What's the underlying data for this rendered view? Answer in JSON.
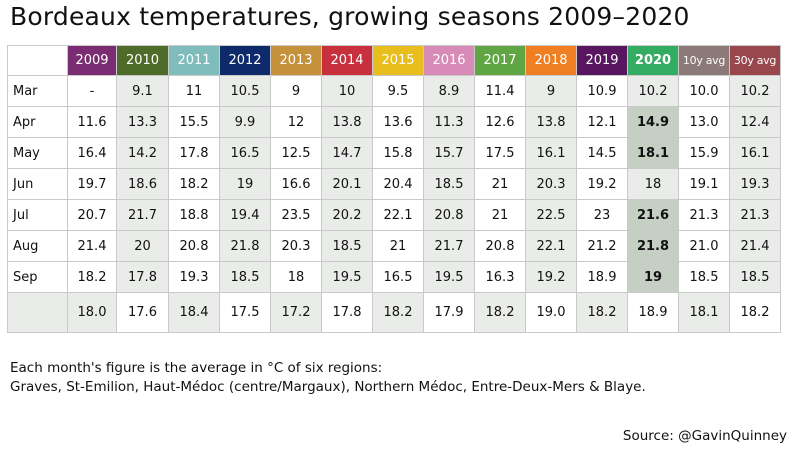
{
  "chart_data": {
    "type": "table",
    "title": "Bordeaux temperatures, growing seasons 2009–2020",
    "columns": [
      {
        "label": "2009",
        "color": "#7b2d73"
      },
      {
        "label": "2010",
        "color": "#4f6b2a"
      },
      {
        "label": "2011",
        "color": "#7fbcbc"
      },
      {
        "label": "2012",
        "color": "#0f2a6b"
      },
      {
        "label": "2013",
        "color": "#c5913a"
      },
      {
        "label": "2014",
        "color": "#c8303d"
      },
      {
        "label": "2015",
        "color": "#e8bd1e"
      },
      {
        "label": "2016",
        "color": "#d98bb8"
      },
      {
        "label": "2017",
        "color": "#5fa544"
      },
      {
        "label": "2018",
        "color": "#ef7f22"
      },
      {
        "label": "2019",
        "color": "#57165f"
      },
      {
        "label": "2020",
        "color": "#33ad62"
      },
      {
        "label": "10y avg",
        "color": "#8b7a77"
      },
      {
        "label": "30y avg",
        "color": "#98474c"
      }
    ],
    "rows": [
      {
        "label": "Mar",
        "values": [
          "-",
          "9.1",
          "11",
          "10.5",
          "9",
          "10",
          "9.5",
          "8.9",
          "11.4",
          "9",
          "10.9",
          "10.2",
          "10.0",
          "10.2"
        ]
      },
      {
        "label": "Apr",
        "values": [
          "11.6",
          "13.3",
          "15.5",
          "9.9",
          "12",
          "13.8",
          "13.6",
          "11.3",
          "12.6",
          "13.8",
          "12.1",
          "14.9",
          "13.0",
          "12.4"
        ]
      },
      {
        "label": "May",
        "values": [
          "16.4",
          "14.2",
          "17.8",
          "16.5",
          "12.5",
          "14.7",
          "15.8",
          "15.7",
          "17.5",
          "16.1",
          "14.5",
          "18.1",
          "15.9",
          "16.1"
        ]
      },
      {
        "label": "Jun",
        "values": [
          "19.7",
          "18.6",
          "18.2",
          "19",
          "16.6",
          "20.1",
          "20.4",
          "18.5",
          "21",
          "20.3",
          "19.2",
          "18",
          "19.1",
          "19.3"
        ]
      },
      {
        "label": "Jul",
        "values": [
          "20.7",
          "21.7",
          "18.8",
          "19.4",
          "23.5",
          "20.2",
          "22.1",
          "20.8",
          "21",
          "22.5",
          "23",
          "21.6",
          "21.3",
          "21.3"
        ]
      },
      {
        "label": "Aug",
        "values": [
          "21.4",
          "20",
          "20.8",
          "21.8",
          "20.3",
          "18.5",
          "21",
          "21.7",
          "20.8",
          "22.1",
          "21.2",
          "21.8",
          "21.0",
          "21.4"
        ]
      },
      {
        "label": "Sep",
        "values": [
          "18.2",
          "17.8",
          "19.3",
          "18.5",
          "18",
          "19.5",
          "16.5",
          "19.5",
          "16.3",
          "19.2",
          "18.9",
          "19",
          "18.5",
          "18.5"
        ]
      },
      {
        "label": "",
        "values": [
          "18.0",
          "17.6",
          "18.4",
          "17.5",
          "17.2",
          "17.8",
          "18.2",
          "17.9",
          "18.2",
          "19.0",
          "18.2",
          "18.9",
          "18.1",
          "18.2"
        ]
      }
    ],
    "highlight_2020_bold_months": [
      "Apr",
      "May",
      "Jul",
      "Aug",
      "Sep"
    ],
    "grid": true
  },
  "colors": {
    "cell_light": "#ffffff",
    "cell_shaded": "#e9ece8",
    "highlight": "#c5cfc4"
  },
  "notes": {
    "line1": "Each month's figure is the average in °C of six regions:",
    "line2": "Graves, St-Emilion, Haut-Médoc (centre/Margaux), Northern Médoc, Entre-Deux-Mers & Blaye.",
    "source": "Source: @GavinQuinney"
  }
}
